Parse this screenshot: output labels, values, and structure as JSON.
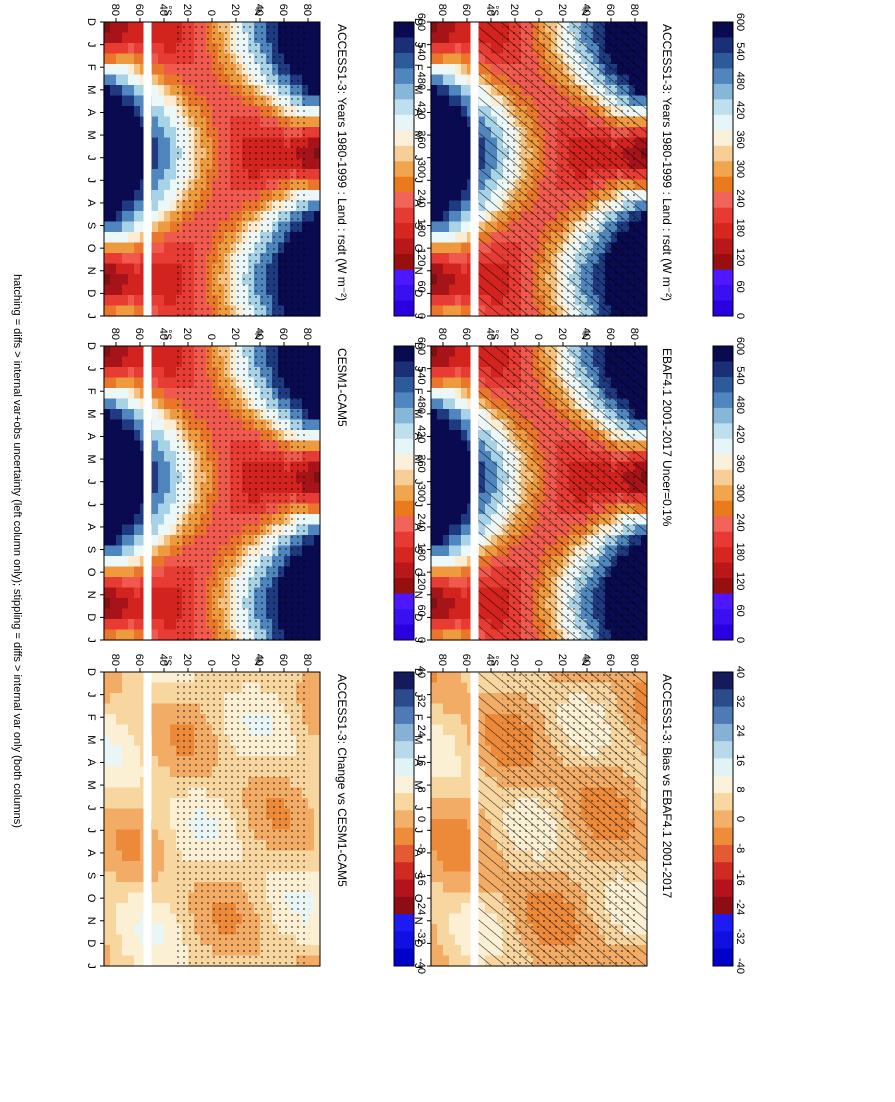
{
  "footer_note": "hatching = diffs > internal var+obs uncertainty (left column only); stippling = diffs > internal var only (both columns)",
  "colors": {
    "abs_scale": [
      "#0a0a50",
      "#1a2f78",
      "#2d5a9a",
      "#4f86be",
      "#86b6d8",
      "#bddfee",
      "#e6f5f7",
      "#fbf0da",
      "#f7cf96",
      "#f1a64e",
      "#e97b1e",
      "#f2635a",
      "#e83a35",
      "#d7261f",
      "#b8181a",
      "#97100f",
      "#4d18ff",
      "#3a0ff0",
      "#2a00e0"
    ],
    "diff_scale": [
      "#141a5c",
      "#2c4b8c",
      "#4f7ab6",
      "#86b0d4",
      "#b8d9ea",
      "#e2f3f6",
      "#fbf2dc",
      "#f8d7a0",
      "#f3b06a",
      "#ee8c3a",
      "#e35a33",
      "#d12a22",
      "#b5131b",
      "#8d0d14",
      "#1d1af5",
      "#1010e0",
      "#0000cc"
    ]
  },
  "chart_data": [
    {
      "type": "heatmap",
      "title": "ACCESS1-3: Years 1980-1999 : Land : rsdt (W m⁻²)",
      "x_ticks": [
        "D",
        "J",
        "F",
        "M",
        "A",
        "M",
        "J",
        "J",
        "A",
        "S",
        "O",
        "N",
        "D",
        "J"
      ],
      "y_ticks": [
        "80",
        "60",
        "40",
        "20",
        "0",
        "20",
        "40",
        "60",
        "80"
      ],
      "y_unit_labels": [
        "°N",
        "°S"
      ],
      "colorbar_ticks": [
        "600",
        "540",
        "480",
        "420",
        "360",
        "300",
        "240",
        "180",
        "120",
        "60",
        "0"
      ],
      "overlay": "hatching+stippling",
      "color_range": [
        0,
        600
      ]
    },
    {
      "type": "heatmap",
      "title": "EBAF4.1 2001-2017 Uncer=0.1%",
      "x_ticks": [
        "D",
        "J",
        "F",
        "M",
        "A",
        "M",
        "J",
        "J",
        "A",
        "S",
        "O",
        "N",
        "D",
        "J"
      ],
      "y_ticks": [
        "80",
        "60",
        "40",
        "20",
        "0",
        "20",
        "40",
        "60",
        "80"
      ],
      "y_unit_labels": [
        "°N",
        "°S"
      ],
      "colorbar_ticks": [
        "600",
        "540",
        "480",
        "420",
        "360",
        "300",
        "240",
        "180",
        "120",
        "60",
        "0"
      ],
      "overlay": "hatching+stippling",
      "color_range": [
        0,
        600
      ]
    },
    {
      "type": "heatmap",
      "title": "ACCESS1-3: Bias vs EBAF4.1 2001-2017",
      "x_ticks": [
        "D",
        "J",
        "F",
        "M",
        "A",
        "M",
        "J",
        "J",
        "A",
        "S",
        "O",
        "N",
        "D",
        "J"
      ],
      "y_ticks": [
        "80",
        "60",
        "40",
        "20",
        "0",
        "20",
        "40",
        "60",
        "80"
      ],
      "y_unit_labels": [
        "°N",
        "°S"
      ],
      "colorbar_ticks": [
        "40",
        "32",
        "24",
        "16",
        "8",
        "0",
        "-8",
        "-16",
        "-24",
        "-32",
        "-40"
      ],
      "overlay": "hatching+stippling",
      "color_range": [
        -40,
        40
      ]
    },
    {
      "type": "heatmap",
      "title": "ACCESS1-3: Years 1980-1999 : Land : rsdt (W m⁻²)",
      "x_ticks": [
        "D",
        "J",
        "F",
        "M",
        "A",
        "M",
        "J",
        "J",
        "A",
        "S",
        "O",
        "N",
        "D",
        "J"
      ],
      "y_ticks": [
        "80",
        "60",
        "40",
        "20",
        "0",
        "20",
        "40",
        "60",
        "80"
      ],
      "y_unit_labels": [
        "°N",
        "°S"
      ],
      "colorbar_ticks": [
        "600",
        "540",
        "480",
        "420",
        "360",
        "300",
        "240",
        "180",
        "120",
        "60",
        "0"
      ],
      "overlay": "stippling",
      "color_range": [
        0,
        600
      ]
    },
    {
      "type": "heatmap",
      "title": "CESM1-CAM5",
      "x_ticks": [
        "D",
        "J",
        "F",
        "M",
        "A",
        "M",
        "J",
        "J",
        "A",
        "S",
        "O",
        "N",
        "D",
        "J"
      ],
      "y_ticks": [
        "80",
        "60",
        "40",
        "20",
        "0",
        "20",
        "40",
        "60",
        "80"
      ],
      "y_unit_labels": [
        "°N",
        "°S"
      ],
      "colorbar_ticks": [
        "600",
        "540",
        "480",
        "420",
        "360",
        "300",
        "240",
        "180",
        "120",
        "60",
        "0"
      ],
      "overlay": "stippling",
      "color_range": [
        0,
        600
      ]
    },
    {
      "type": "heatmap",
      "title": "ACCESS1-3: Change vs CESM1-CAM5",
      "x_ticks": [
        "D",
        "J",
        "F",
        "M",
        "A",
        "M",
        "J",
        "J",
        "A",
        "S",
        "O",
        "N",
        "D",
        "J"
      ],
      "y_ticks": [
        "80",
        "60",
        "40",
        "20",
        "0",
        "20",
        "40",
        "60",
        "80"
      ],
      "y_unit_labels": [
        "°N",
        "°S"
      ],
      "colorbar_ticks": [
        "40",
        "32",
        "24",
        "16",
        "8",
        "0",
        "-8",
        "-16",
        "-24",
        "-32",
        "-40"
      ],
      "overlay": "stippling",
      "color_range": [
        -40,
        40
      ]
    }
  ]
}
